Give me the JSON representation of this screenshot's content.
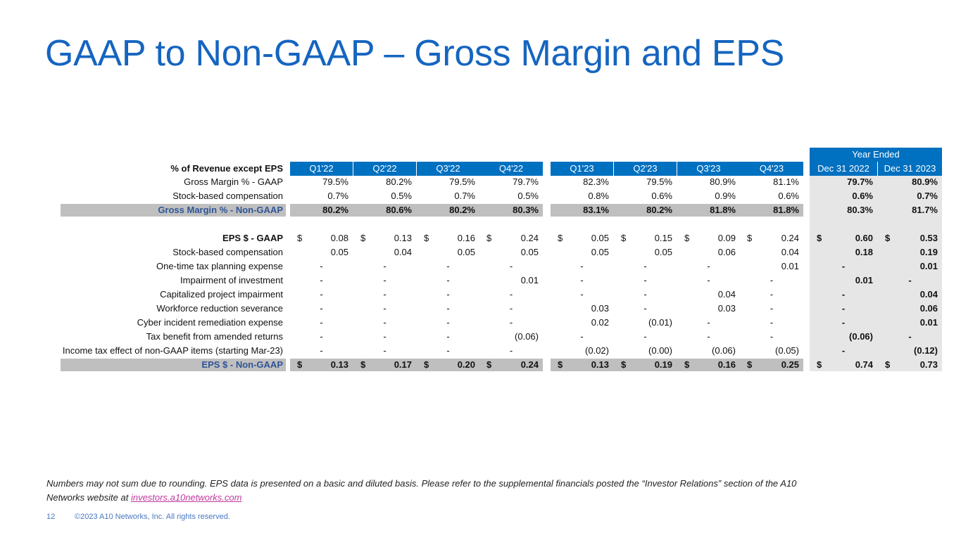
{
  "title": "GAAP to Non-GAAP – Gross Margin and EPS",
  "table": {
    "year_ended": "Year Ended",
    "header": [
      "% of Revenue except EPS",
      "Q1'22",
      "Q2'22",
      "Q3'22",
      "Q4'22",
      "Q1'23",
      "Q2'23",
      "Q3'23",
      "Q4'23",
      "Dec 31 2022",
      "Dec 31 2023"
    ],
    "currency": "$",
    "sections": [
      {
        "rows": [
          {
            "label": "Gross Margin % - GAAP",
            "cells": [
              "79.5%",
              "80.2%",
              "79.5%",
              "79.7%",
              "82.3%",
              "79.5%",
              "80.9%",
              "81.1%",
              "79.7%",
              "80.9%"
            ]
          },
          {
            "label": "Stock-based compensation",
            "cells": [
              "0.7%",
              "0.5%",
              "0.7%",
              "0.5%",
              "0.8%",
              "0.6%",
              "0.9%",
              "0.6%",
              "0.6%",
              "0.7%"
            ]
          },
          {
            "label": "Gross Margin % - Non-GAAP",
            "highlight": true,
            "bold": true,
            "cells": [
              "80.2%",
              "80.6%",
              "80.2%",
              "80.3%",
              "83.1%",
              "80.2%",
              "81.8%",
              "81.8%",
              "80.3%",
              "81.7%"
            ]
          }
        ]
      },
      {
        "rows": [
          {
            "label": "EPS $ - GAAP",
            "bold_label": true,
            "dollar": true,
            "cells": [
              "0.08",
              "0.13",
              "0.16",
              "0.24",
              "0.05",
              "0.15",
              "0.09",
              "0.24",
              "0.60",
              "0.53"
            ]
          },
          {
            "label": "Stock-based compensation",
            "cells": [
              "0.05",
              "0.04",
              "0.05",
              "0.05",
              "0.05",
              "0.05",
              "0.06",
              "0.04",
              "0.18",
              "0.19"
            ]
          },
          {
            "label": "One-time tax planning expense",
            "cells": [
              "-",
              "-",
              "-",
              "-",
              "-",
              "-",
              "-",
              "0.01",
              "-",
              "0.01"
            ]
          },
          {
            "label": "Impairment of investment",
            "cells": [
              "-",
              "-",
              "-",
              "0.01",
              "-",
              "-",
              "-",
              "-",
              "0.01",
              "-"
            ]
          },
          {
            "label": "Capitalized project impairment",
            "cells": [
              "-",
              "-",
              "-",
              "-",
              "-",
              "-",
              "0.04",
              "-",
              "-",
              "0.04"
            ]
          },
          {
            "label": "Workforce reduction severance",
            "cells": [
              "-",
              "-",
              "-",
              "-",
              "0.03",
              "-",
              "0.03",
              "-",
              "-",
              "0.06"
            ]
          },
          {
            "label": "Cyber incident remediation expense",
            "cells": [
              "-",
              "-",
              "-",
              "-",
              "0.02",
              "(0.01)",
              "-",
              "-",
              "-",
              "0.01"
            ]
          },
          {
            "label": "Tax benefit from amended returns",
            "cells": [
              "-",
              "-",
              "-",
              "(0.06)",
              "-",
              "-",
              "-",
              "-",
              "(0.06)",
              "-"
            ]
          },
          {
            "label": "Income tax effect of non-GAAP items (starting Mar-23)",
            "cells": [
              "-",
              "-",
              "-",
              "-",
              "(0.02)",
              "(0.00)",
              "(0.06)",
              "(0.05)",
              "-",
              "(0.12)"
            ]
          },
          {
            "label": "EPS $ - Non-GAAP",
            "highlight": true,
            "bold": true,
            "dollar": true,
            "cells": [
              "0.13",
              "0.17",
              "0.20",
              "0.24",
              "0.13",
              "0.19",
              "0.16",
              "0.25",
              "0.74",
              "0.73"
            ]
          }
        ]
      }
    ]
  },
  "footnote": {
    "text": "Numbers may not sum due to rounding.  EPS data is presented on a basic and diluted basis.  Please refer to the supplemental financials posted the “Investor Relations” section of the A10 Networks website at",
    "link": "investors.a10networks.com"
  },
  "footer": {
    "page": "12",
    "copyright": "©2023 A10 Networks, Inc. All rights reserved."
  }
}
